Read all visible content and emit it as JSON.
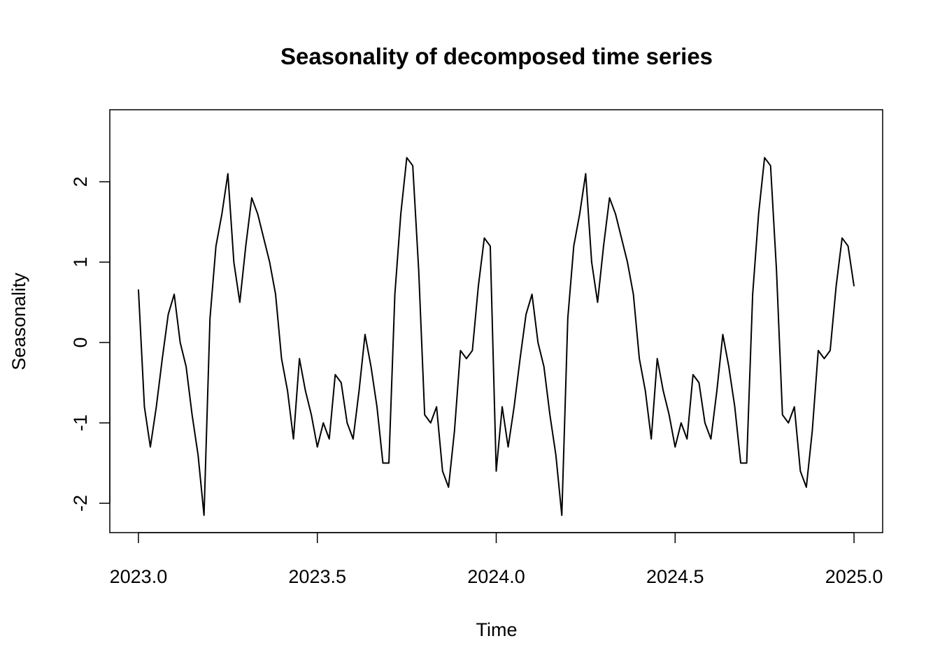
{
  "chart_data": {
    "type": "line",
    "title": "Seasonality of decomposed time series",
    "xlabel": "Time",
    "ylabel": "Seasonality",
    "color": "#000000",
    "x": [
      2023.0,
      2023.0167,
      2023.0333,
      2023.05,
      2023.0667,
      2023.0833,
      2023.1,
      2023.1167,
      2023.1333,
      2023.15,
      2023.1667,
      2023.1833,
      2023.2,
      2023.2167,
      2023.2333,
      2023.25,
      2023.2667,
      2023.2833,
      2023.3,
      2023.3167,
      2023.3333,
      2023.35,
      2023.3667,
      2023.3833,
      2023.4,
      2023.4167,
      2023.4333,
      2023.45,
      2023.4667,
      2023.4833,
      2023.5,
      2023.5167,
      2023.5333,
      2023.55,
      2023.5667,
      2023.5833,
      2023.6,
      2023.6167,
      2023.6333,
      2023.65,
      2023.6667,
      2023.6833,
      2023.7,
      2023.7167,
      2023.7333,
      2023.75,
      2023.7667,
      2023.7833,
      2023.8,
      2023.8167,
      2023.8333,
      2023.85,
      2023.8667,
      2023.8833,
      2023.9,
      2023.9167,
      2023.9333,
      2023.95,
      2023.9667,
      2023.9833,
      2024.0,
      2024.0167,
      2024.0333,
      2024.05,
      2024.0667,
      2024.0833,
      2024.1,
      2024.1167,
      2024.1333,
      2024.15,
      2024.1667,
      2024.1833,
      2024.2,
      2024.2167,
      2024.2333,
      2024.25,
      2024.2667,
      2024.2833,
      2024.3,
      2024.3167,
      2024.3333,
      2024.35,
      2024.3667,
      2024.3833,
      2024.4,
      2024.4167,
      2024.4333,
      2024.45,
      2024.4667,
      2024.4833,
      2024.5,
      2024.5167,
      2024.5333,
      2024.55,
      2024.5667,
      2024.5833,
      2024.6,
      2024.6167,
      2024.6333,
      2024.65,
      2024.6667,
      2024.6833,
      2024.7,
      2024.7167,
      2024.7333,
      2024.75,
      2024.7667,
      2024.7833,
      2024.8,
      2024.8167,
      2024.8333,
      2024.85,
      2024.8667,
      2024.8833,
      2024.9,
      2024.9167,
      2024.9333,
      2024.95,
      2024.9667,
      2024.9833,
      2025.0
    ],
    "values": [
      0.66,
      -0.8,
      -1.3,
      -0.8,
      -0.2,
      0.35,
      0.6,
      0.0,
      -0.3,
      -0.9,
      -1.4,
      -2.15,
      0.3,
      1.2,
      1.6,
      2.1,
      1.0,
      0.5,
      1.2,
      1.8,
      1.6,
      1.3,
      1.0,
      0.6,
      -0.2,
      -0.6,
      -1.2,
      -0.2,
      -0.6,
      -0.9,
      -1.3,
      -1.0,
      -1.2,
      -0.4,
      -0.5,
      -1.0,
      -1.2,
      -0.6,
      0.1,
      -0.3,
      -0.8,
      -1.5,
      -1.5,
      0.6,
      1.6,
      2.3,
      2.2,
      0.9,
      -0.9,
      -1.0,
      -0.8,
      -1.6,
      -1.8,
      -1.1,
      -0.1,
      -0.2,
      -0.1,
      0.7,
      1.3,
      1.2,
      -1.6,
      -0.8,
      -1.3,
      -0.8,
      -0.2,
      0.35,
      0.6,
      0.0,
      -0.3,
      -0.9,
      -1.4,
      -2.15,
      0.3,
      1.2,
      1.6,
      2.1,
      1.0,
      0.5,
      1.2,
      1.8,
      1.6,
      1.3,
      1.0,
      0.6,
      -0.2,
      -0.6,
      -1.2,
      -0.2,
      -0.6,
      -0.9,
      -1.3,
      -1.0,
      -1.2,
      -0.4,
      -0.5,
      -1.0,
      -1.2,
      -0.6,
      0.1,
      -0.3,
      -0.8,
      -1.5,
      -1.5,
      0.6,
      1.6,
      2.3,
      2.2,
      0.9,
      -0.9,
      -1.0,
      -0.8,
      -1.6,
      -1.8,
      -1.1,
      -0.1,
      -0.2,
      -0.1,
      0.7,
      1.3,
      1.2,
      0.7
    ],
    "xlim": [
      2022.92,
      2025.08
    ],
    "ylim": [
      -2.365,
      2.896
    ],
    "xticks": [
      {
        "value": 2023,
        "label": "2023.0"
      },
      {
        "value": 2023.5,
        "label": "2023.5"
      },
      {
        "value": 2024,
        "label": "2024.0"
      },
      {
        "value": 2024.5,
        "label": "2024.5"
      },
      {
        "value": 2025,
        "label": "2025.0"
      }
    ],
    "yticks": [
      -2,
      -1,
      0,
      1,
      2
    ]
  }
}
